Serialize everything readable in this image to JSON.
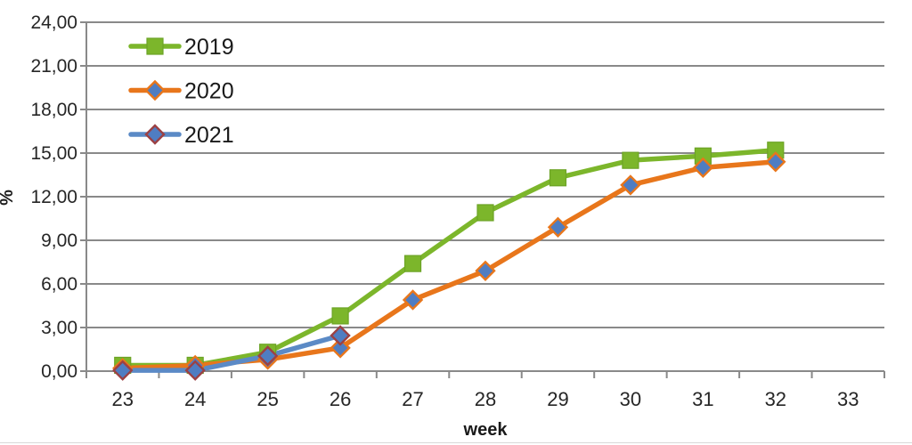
{
  "chart_data": {
    "type": "line",
    "title": "",
    "xlabel": "week",
    "ylabel": "%",
    "grid": true,
    "legend_position": "top-left",
    "x_categories": [
      "23",
      "24",
      "25",
      "26",
      "27",
      "28",
      "29",
      "30",
      "31",
      "32",
      "33"
    ],
    "x_start_week": 23,
    "ylim": [
      0,
      24
    ],
    "y_tick_step": 3,
    "y_tick_labels": [
      "0,00",
      "3,00",
      "6,00",
      "9,00",
      "12,00",
      "15,00",
      "18,00",
      "21,00",
      "24,00"
    ],
    "series": [
      {
        "name": "2019",
        "line_color": "#7CB62B",
        "marker": "square",
        "marker_fill": "#7CB62B",
        "marker_border": "#6CA326",
        "x": [
          23,
          24,
          25,
          26,
          27,
          28,
          29,
          30,
          31,
          32
        ],
        "values": [
          0.4,
          0.4,
          1.3,
          3.8,
          7.4,
          10.9,
          13.3,
          14.5,
          14.8,
          15.2
        ]
      },
      {
        "name": "2020",
        "line_color": "#E8761B",
        "marker": "diamond",
        "marker_fill": "#4F7DC2",
        "marker_border": "#E8761B",
        "x": [
          23,
          24,
          25,
          26,
          27,
          28,
          29,
          30,
          31,
          32
        ],
        "values": [
          0.2,
          0.4,
          0.8,
          1.6,
          4.9,
          6.9,
          9.9,
          12.8,
          14.0,
          14.4
        ]
      },
      {
        "name": "2021",
        "line_color": "#5B8AC6",
        "marker": "diamond",
        "marker_fill": "#4F7DC2",
        "marker_border": "#9C4144",
        "x": [
          23,
          24,
          25,
          26
        ],
        "values": [
          0.05,
          0.05,
          1.05,
          2.45
        ]
      }
    ],
    "colors": {
      "gridline": "#898989",
      "axis_line": "#898989",
      "tick_label": "#262626",
      "axis_title": "#1a1a1a",
      "legend_text": "#1a1a1a",
      "background": "#ffffff"
    }
  }
}
